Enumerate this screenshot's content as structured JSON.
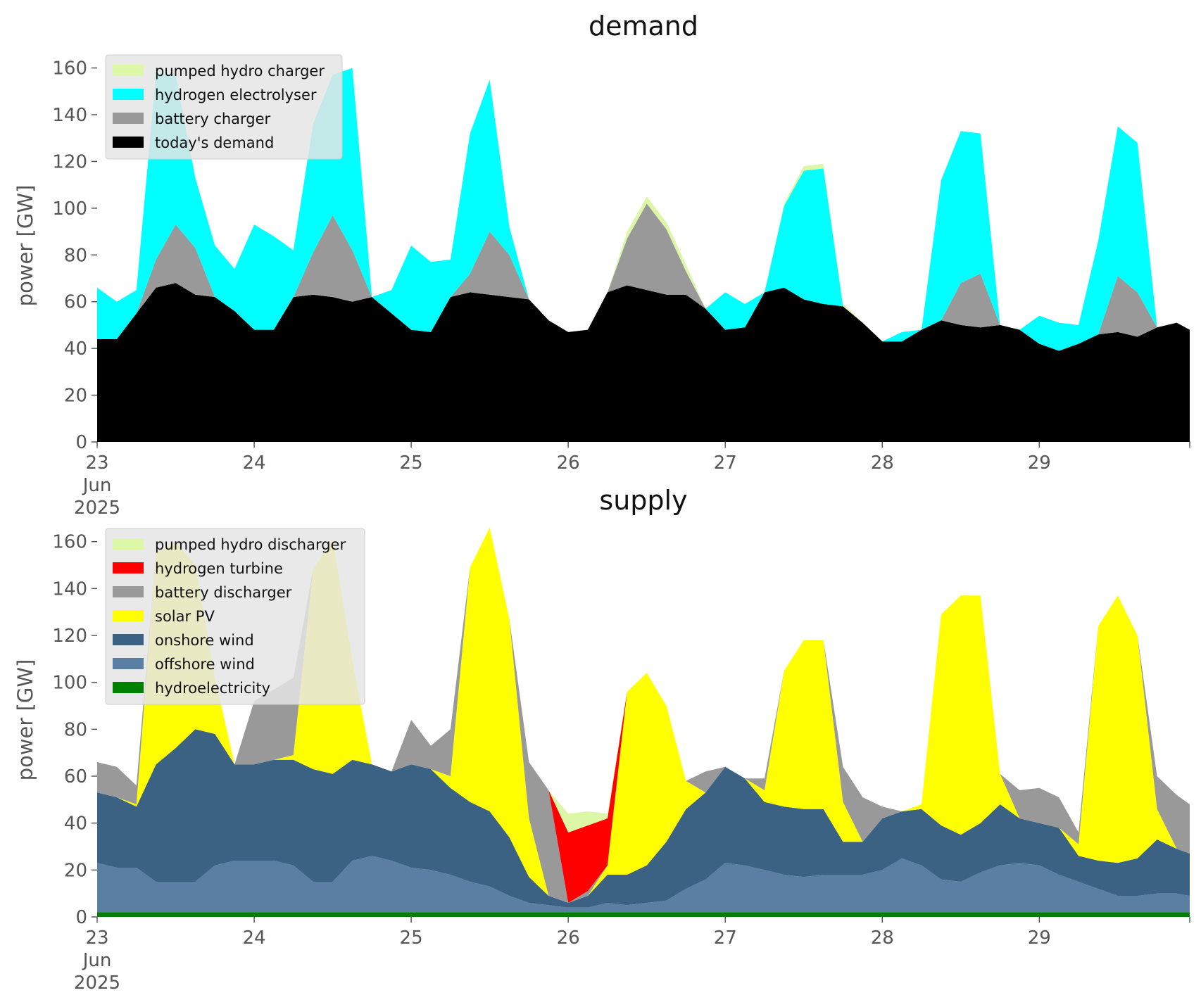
{
  "chart_data": [
    {
      "type": "area",
      "title": "demand",
      "ylabel": "power [GW]",
      "xlabel": "",
      "ylim": [
        0,
        168
      ],
      "yticks": [
        0,
        20,
        40,
        60,
        80,
        100,
        120,
        140,
        160
      ],
      "x": [
        23.0,
        23.125,
        23.25,
        23.375,
        23.5,
        23.625,
        23.75,
        23.875,
        24.0,
        24.125,
        24.25,
        24.375,
        24.5,
        24.625,
        24.75,
        24.875,
        25.0,
        25.125,
        25.25,
        25.375,
        25.5,
        25.625,
        25.75,
        25.875,
        26.0,
        26.125,
        26.25,
        26.375,
        26.5,
        26.625,
        26.75,
        26.875,
        27.0,
        27.125,
        27.25,
        27.375,
        27.5,
        27.625,
        27.75,
        27.875,
        28.0,
        28.125,
        28.25,
        28.375,
        28.5,
        28.625,
        28.75,
        28.875,
        29.0,
        29.125,
        29.25,
        29.375,
        29.5,
        29.625,
        29.75,
        29.875,
        29.958
      ],
      "xticks": [
        {
          "value": 23,
          "label": "23",
          "sub": [
            "Jun",
            "2025"
          ]
        },
        {
          "value": 24,
          "label": "24"
        },
        {
          "value": 25,
          "label": "25"
        },
        {
          "value": 26,
          "label": "26"
        },
        {
          "value": 27,
          "label": "27"
        },
        {
          "value": 28,
          "label": "28"
        },
        {
          "value": 29,
          "label": "29"
        }
      ],
      "xlim": [
        23,
        29.958
      ],
      "legend_position": "top-left",
      "series": [
        {
          "name": "today's demand",
          "color": "#000000",
          "values": [
            44,
            44,
            55,
            66,
            68,
            63,
            62,
            56,
            48,
            48,
            62,
            63,
            62,
            60,
            62,
            55,
            48,
            47,
            62,
            64,
            63,
            62,
            61,
            52,
            47,
            48,
            64,
            67,
            65,
            63,
            63,
            57,
            48,
            49,
            64,
            66,
            61,
            59,
            58,
            51,
            43,
            43,
            48,
            52,
            50,
            49,
            50,
            48,
            42,
            39,
            42,
            46,
            47,
            45,
            49,
            51,
            48
          ]
        },
        {
          "name": "battery charger",
          "color": "#999999",
          "values": [
            0,
            0,
            0,
            12,
            25,
            20,
            0,
            0,
            0,
            0,
            0,
            18,
            35,
            22,
            0,
            0,
            0,
            0,
            0,
            8,
            27,
            18,
            0,
            0,
            0,
            0,
            0,
            20,
            37,
            28,
            10,
            0,
            0,
            0,
            0,
            0,
            0,
            0,
            0,
            0,
            0,
            0,
            0,
            0,
            18,
            23,
            0,
            0,
            0,
            0,
            0,
            0,
            24,
            19,
            0,
            0,
            0
          ]
        },
        {
          "name": "hydrogen electrolyser",
          "color": "#00ffff",
          "values": [
            22,
            16,
            10,
            80,
            64,
            30,
            22,
            18,
            45,
            40,
            20,
            55,
            60,
            78,
            0,
            10,
            36,
            30,
            16,
            60,
            65,
            12,
            0,
            0,
            0,
            0,
            0,
            0,
            0,
            0,
            0,
            0,
            16,
            10,
            0,
            35,
            55,
            58,
            0,
            0,
            0,
            4,
            0,
            60,
            65,
            60,
            0,
            0,
            12,
            12,
            8,
            40,
            64,
            64,
            0,
            0,
            0
          ]
        },
        {
          "name": "pumped hydro charger",
          "color": "#dcf7a6",
          "values": [
            0,
            0,
            0,
            0,
            0,
            0,
            0,
            0,
            0,
            0,
            0,
            0,
            0,
            0,
            0,
            0,
            0,
            0,
            0,
            0,
            0,
            0,
            0,
            0,
            0,
            0,
            0,
            3,
            3,
            3,
            3,
            0,
            0,
            0,
            0,
            1,
            2,
            2,
            1,
            0,
            0,
            0,
            0,
            0,
            0,
            0,
            0,
            0,
            0,
            0,
            0,
            0,
            0,
            0,
            0,
            0,
            0
          ]
        }
      ]
    },
    {
      "type": "area",
      "title": "supply",
      "ylabel": "power [GW]",
      "xlabel": "",
      "ylim": [
        0,
        168
      ],
      "yticks": [
        0,
        20,
        40,
        60,
        80,
        100,
        120,
        140,
        160
      ],
      "x": [
        23.0,
        23.125,
        23.25,
        23.375,
        23.5,
        23.625,
        23.75,
        23.875,
        24.0,
        24.125,
        24.25,
        24.375,
        24.5,
        24.625,
        24.75,
        24.875,
        25.0,
        25.125,
        25.25,
        25.375,
        25.5,
        25.625,
        25.75,
        25.875,
        26.0,
        26.125,
        26.25,
        26.375,
        26.5,
        26.625,
        26.75,
        26.875,
        27.0,
        27.125,
        27.25,
        27.375,
        27.5,
        27.625,
        27.75,
        27.875,
        28.0,
        28.125,
        28.25,
        28.375,
        28.5,
        28.625,
        28.75,
        28.875,
        29.0,
        29.125,
        29.25,
        29.375,
        29.5,
        29.625,
        29.75,
        29.875,
        29.958
      ],
      "xticks": [
        {
          "value": 23,
          "label": "23",
          "sub": [
            "Jun",
            "2025"
          ]
        },
        {
          "value": 24,
          "label": "24"
        },
        {
          "value": 25,
          "label": "25"
        },
        {
          "value": 26,
          "label": "26"
        },
        {
          "value": 27,
          "label": "27"
        },
        {
          "value": 28,
          "label": "28"
        },
        {
          "value": 29,
          "label": "29"
        }
      ],
      "xlim": [
        23,
        29.958
      ],
      "legend_position": "top-left",
      "series": [
        {
          "name": "hydroelectricity",
          "color": "#008000",
          "values": [
            2,
            2,
            2,
            2,
            2,
            2,
            2,
            2,
            2,
            2,
            2,
            2,
            2,
            2,
            2,
            2,
            2,
            2,
            2,
            2,
            2,
            2,
            2,
            2,
            2,
            2,
            2,
            2,
            2,
            2,
            2,
            2,
            2,
            2,
            2,
            2,
            2,
            2,
            2,
            2,
            2,
            2,
            2,
            2,
            2,
            2,
            2,
            2,
            2,
            2,
            2,
            2,
            2,
            2,
            2,
            2,
            2
          ]
        },
        {
          "name": "offshore wind",
          "color": "#5b7fa3",
          "values": [
            21,
            19,
            19,
            13,
            13,
            13,
            20,
            22,
            22,
            22,
            20,
            13,
            13,
            22,
            24,
            22,
            19,
            18,
            16,
            13,
            11,
            7,
            4,
            3,
            2,
            2,
            4,
            3,
            4,
            5,
            10,
            14,
            21,
            20,
            18,
            16,
            15,
            16,
            16,
            16,
            18,
            23,
            20,
            14,
            13,
            17,
            20,
            21,
            20,
            16,
            13,
            10,
            7,
            7,
            8,
            8,
            7
          ]
        },
        {
          "name": "onshore wind",
          "color": "#3b6183",
          "values": [
            30,
            30,
            26,
            50,
            57,
            65,
            56,
            41,
            41,
            43,
            45,
            48,
            46,
            43,
            39,
            38,
            44,
            43,
            37,
            34,
            32,
            25,
            11,
            4,
            2,
            5,
            12,
            13,
            16,
            25,
            34,
            37,
            41,
            37,
            29,
            29,
            29,
            28,
            14,
            14,
            22,
            20,
            24,
            23,
            20,
            21,
            26,
            19,
            18,
            20,
            11,
            12,
            14,
            16,
            23,
            19,
            18
          ]
        },
        {
          "name": "solar PV",
          "color": "#ffff00",
          "values": [
            0,
            0,
            1,
            90,
            88,
            70,
            24,
            0,
            0,
            0,
            2,
            85,
            100,
            42,
            0,
            0,
            0,
            0,
            5,
            100,
            121,
            93,
            25,
            0,
            0,
            0,
            4,
            78,
            82,
            58,
            12,
            0,
            0,
            0,
            5,
            58,
            72,
            72,
            17,
            0,
            0,
            0,
            2,
            90,
            102,
            97,
            13,
            0,
            0,
            0,
            5,
            100,
            114,
            95,
            13,
            0,
            0
          ]
        },
        {
          "name": "battery discharger",
          "color": "#999999",
          "values": [
            13,
            13,
            8,
            0,
            0,
            0,
            0,
            0,
            27,
            30,
            33,
            0,
            0,
            0,
            0,
            0,
            19,
            10,
            20,
            0,
            0,
            0,
            24,
            45,
            0,
            2,
            0,
            0,
            0,
            0,
            0,
            9,
            0,
            0,
            5,
            0,
            0,
            0,
            15,
            19,
            5,
            0,
            0,
            0,
            0,
            0,
            0,
            12,
            15,
            13,
            5,
            0,
            0,
            0,
            14,
            23,
            21
          ]
        },
        {
          "name": "hydrogen turbine",
          "color": "#ff0000",
          "values": [
            0,
            0,
            0,
            0,
            0,
            0,
            0,
            0,
            0,
            0,
            0,
            0,
            0,
            0,
            0,
            0,
            0,
            0,
            0,
            0,
            0,
            0,
            0,
            0,
            30,
            28,
            20,
            0,
            0,
            0,
            0,
            0,
            0,
            0,
            0,
            0,
            0,
            0,
            0,
            0,
            0,
            0,
            0,
            0,
            0,
            0,
            0,
            0,
            0,
            0,
            0,
            0,
            0,
            0,
            0,
            0,
            0
          ]
        },
        {
          "name": "pumped hydro discharger",
          "color": "#dcf7a6",
          "values": [
            0,
            0,
            0,
            0,
            0,
            0,
            0,
            0,
            0,
            0,
            0,
            0,
            0,
            0,
            0,
            0,
            0,
            0,
            0,
            0,
            0,
            0,
            0,
            0,
            8,
            6,
            2,
            0,
            0,
            0,
            0,
            0,
            0,
            0,
            0,
            0,
            0,
            0,
            0,
            0,
            0,
            0,
            0,
            0,
            0,
            0,
            0,
            0,
            0,
            0,
            0,
            0,
            0,
            0,
            0,
            0,
            0
          ]
        }
      ]
    }
  ]
}
